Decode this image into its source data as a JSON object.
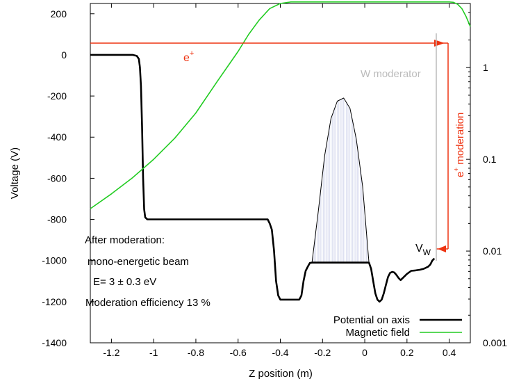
{
  "chart_data": {
    "type": "line",
    "xlabel": "Z position (m)",
    "ylabel": "Voltage (V)",
    "xlim": [
      -1.3,
      0.5
    ],
    "ylim": [
      -1400,
      250
    ],
    "y2lim": [
      0.001,
      5
    ],
    "y2scale": "log",
    "xticks": [
      "-1.2",
      "-1",
      "-0.8",
      "-0.6",
      "-0.4",
      "-0.2",
      "0",
      "0.2",
      "0.4"
    ],
    "yticks": [
      "200",
      "0",
      "-200",
      "-400",
      "-600",
      "-800",
      "-1000",
      "-1200",
      "-1400"
    ],
    "y2ticks": [
      "1",
      "0.1",
      "0.01",
      "0.001"
    ],
    "legend_position": "bottom-right",
    "series": [
      {
        "name": "Potential on axis",
        "color": "#000000",
        "axis": "left",
        "x": [
          -1.3,
          -1.1,
          -1.08,
          -1.07,
          -1.065,
          -1.06,
          -1.055,
          -1.05,
          -1.045,
          -1.04,
          -1.03,
          -1.0,
          -0.5,
          -0.46,
          -0.45,
          -0.44,
          -0.43,
          -0.42,
          -0.41,
          -0.4,
          -0.35,
          -0.31,
          -0.3,
          -0.29,
          -0.28,
          -0.27,
          -0.26,
          -0.25,
          -0.1,
          0.02,
          0.03,
          0.04,
          0.05,
          0.06,
          0.07,
          0.08,
          0.09,
          0.1,
          0.11,
          0.12,
          0.13,
          0.14,
          0.15,
          0.16,
          0.17,
          0.18,
          0.2,
          0.22,
          0.24,
          0.26,
          0.28,
          0.3,
          0.31,
          0.32,
          0.33
        ],
        "y": [
          0,
          0,
          -5,
          -20,
          -60,
          -150,
          -350,
          -600,
          -750,
          -790,
          -800,
          -800,
          -800,
          -800,
          -820,
          -850,
          -950,
          -1100,
          -1170,
          -1190,
          -1190,
          -1190,
          -1170,
          -1100,
          -1050,
          -1030,
          -1012,
          -1010,
          -1010,
          -1010,
          -1040,
          -1100,
          -1160,
          -1190,
          -1200,
          -1190,
          -1160,
          -1120,
          -1080,
          -1060,
          -1055,
          -1058,
          -1070,
          -1085,
          -1095,
          -1085,
          -1065,
          -1050,
          -1048,
          -1045,
          -1040,
          -1030,
          -1020,
          -1000,
          -990
        ]
      },
      {
        "name": "Magnetic field",
        "color": "#22cc22",
        "axis": "right",
        "x": [
          -1.3,
          -1.2,
          -1.1,
          -1.0,
          -0.9,
          -0.8,
          -0.7,
          -0.6,
          -0.55,
          -0.5,
          -0.45,
          -0.4,
          -0.35,
          -0.3,
          0.0,
          0.2,
          0.3,
          0.4,
          0.42,
          0.44,
          0.46,
          0.48,
          0.5
        ],
        "y": [
          0.029,
          0.042,
          0.063,
          0.1,
          0.17,
          0.32,
          0.7,
          1.5,
          2.3,
          3.3,
          4.4,
          5.0,
          5.2,
          5.2,
          5.2,
          5.2,
          5.2,
          5.2,
          5.15,
          4.9,
          4.4,
          3.6,
          2.8
        ]
      },
      {
        "name": "",
        "color": "#000000",
        "axis": "left",
        "style": "thin",
        "x": [
          -0.25,
          -0.22,
          -0.19,
          -0.16,
          -0.13,
          -0.1,
          -0.07,
          -0.04,
          -0.01,
          0.02
        ],
        "y": [
          -1010,
          -760,
          -490,
          -310,
          -225,
          -210,
          -260,
          -410,
          -640,
          -1010
        ]
      }
    ],
    "annotations": {
      "positron_top": "e",
      "positron_sup": "+",
      "moderator": "W moderator",
      "moderation_prefix": "e",
      "moderation_sup": "+",
      "moderation_word": " moderation",
      "vw_main": "V",
      "vw_sub": "W",
      "after_moderation": "After moderation:",
      "mono_beam": "mono-energetic beam",
      "energy": "E= 3 ± 0.3 eV",
      "efficiency": "Moderation efficiency 13 %"
    },
    "colors": {
      "beam": "#ee3311",
      "moderator": "#bbbbbb",
      "hatch": "#c9cde8"
    }
  }
}
